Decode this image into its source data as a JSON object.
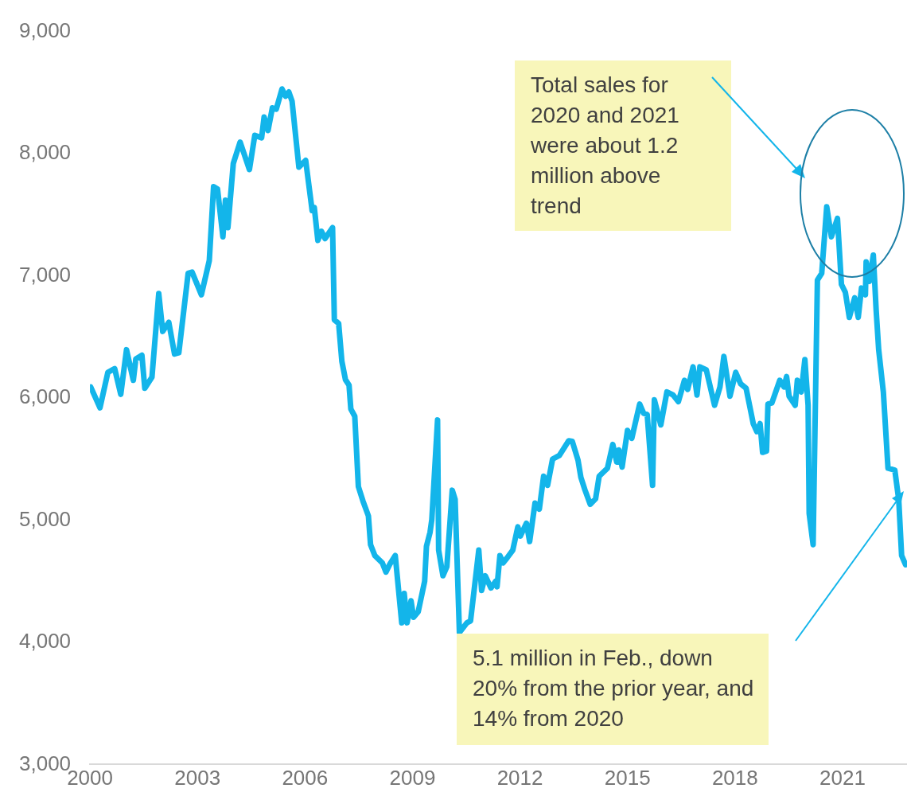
{
  "chart_data": {
    "type": "line",
    "x": [
      2000.02,
      2000.28,
      2000.5,
      2000.69,
      2000.86,
      2001.02,
      2001.21,
      2001.28,
      2001.45,
      2001.53,
      2001.73,
      2001.92,
      2002.03,
      2002.2,
      2002.36,
      2002.48,
      2002.74,
      2002.85,
      2003.11,
      2003.33,
      2003.45,
      2003.56,
      2003.71,
      2003.78,
      2003.85,
      2004.0,
      2004.19,
      2004.45,
      2004.6,
      2004.79,
      2004.86,
      2004.97,
      2005.09,
      2005.2,
      2005.36,
      2005.46,
      2005.55,
      2005.64,
      2005.83,
      2006.02,
      2006.2,
      2006.26,
      2006.36,
      2006.46,
      2006.56,
      2006.77,
      2006.82,
      2006.94,
      2007.03,
      2007.13,
      2007.23,
      2007.28,
      2007.39,
      2007.49,
      2007.62,
      2007.77,
      2007.83,
      2007.95,
      2008.16,
      2008.26,
      2008.36,
      2008.52,
      2008.7,
      2008.77,
      2008.85,
      2008.96,
      2009.03,
      2009.16,
      2009.34,
      2009.39,
      2009.49,
      2009.54,
      2009.7,
      2009.73,
      2009.85,
      2009.96,
      2010.11,
      2010.19,
      2010.31,
      2010.52,
      2010.62,
      2010.72,
      2010.85,
      2010.93,
      2011.03,
      2011.19,
      2011.32,
      2011.36,
      2011.44,
      2011.53,
      2011.65,
      2011.8,
      2011.94,
      2012.01,
      2012.18,
      2012.27,
      2012.42,
      2012.54,
      2012.66,
      2012.77,
      2012.91,
      2013.1,
      2013.36,
      2013.46,
      2013.62,
      2013.7,
      2013.81,
      2013.96,
      2014.11,
      2014.21,
      2014.44,
      2014.59,
      2014.7,
      2014.76,
      2014.85,
      2015.0,
      2015.12,
      2015.34,
      2015.45,
      2015.55,
      2015.7,
      2015.75,
      2015.93,
      2016.1,
      2016.27,
      2016.42,
      2016.59,
      2016.68,
      2016.83,
      2016.94,
      2017.02,
      2017.2,
      2017.43,
      2017.58,
      2017.69,
      2017.86,
      2018.02,
      2018.16,
      2018.31,
      2018.51,
      2018.61,
      2018.7,
      2018.77,
      2018.88,
      2018.92,
      2019.03,
      2019.25,
      2019.37,
      2019.44,
      2019.51,
      2019.68,
      2019.74,
      2019.85,
      2019.95,
      2020.04,
      2020.07,
      2020.18,
      2020.3,
      2020.42,
      2020.56,
      2020.69,
      2020.86,
      2020.97,
      2021.08,
      2021.19,
      2021.34,
      2021.44,
      2021.53,
      2021.64,
      2021.66,
      2021.75,
      2021.86,
      2021.94,
      2022.01,
      2022.14,
      2022.27,
      2022.46,
      2022.57,
      2022.65,
      2022.76
    ],
    "series": [
      {
        "color": "#13b5ea",
        "values": [
          6090,
          5920,
          6210,
          6240,
          6030,
          6395,
          6145,
          6320,
          6350,
          6080,
          6170,
          6855,
          6545,
          6620,
          6360,
          6370,
          7020,
          7030,
          6845,
          7125,
          7730,
          7710,
          7320,
          7620,
          7395,
          7920,
          8095,
          7870,
          8150,
          8130,
          8300,
          8190,
          8375,
          8365,
          8530,
          8470,
          8505,
          8430,
          7890,
          7945,
          7535,
          7560,
          7290,
          7365,
          7305,
          7395,
          6640,
          6610,
          6300,
          6150,
          6105,
          5910,
          5850,
          5275,
          5155,
          5035,
          4800,
          4710,
          4650,
          4575,
          4635,
          4710,
          4160,
          4400,
          4160,
          4340,
          4205,
          4250,
          4500,
          4785,
          4900,
          5005,
          5820,
          4755,
          4545,
          4620,
          5245,
          5170,
          4080,
          4160,
          4175,
          4425,
          4755,
          4425,
          4545,
          4445,
          4500,
          4455,
          4710,
          4650,
          4695,
          4755,
          4945,
          4870,
          4975,
          4825,
          5140,
          5090,
          5360,
          5285,
          5500,
          5530,
          5650,
          5645,
          5490,
          5350,
          5250,
          5130,
          5175,
          5360,
          5425,
          5620,
          5475,
          5575,
          5435,
          5735,
          5670,
          5950,
          5875,
          5865,
          5285,
          5985,
          5780,
          6050,
          6025,
          5970,
          6145,
          6070,
          6255,
          6025,
          6255,
          6230,
          5940,
          6090,
          6340,
          6015,
          6210,
          6115,
          6080,
          5790,
          5725,
          5790,
          5555,
          5565,
          5950,
          5960,
          6145,
          6090,
          6175,
          6015,
          5940,
          6145,
          6050,
          6315,
          5940,
          5055,
          4800,
          6965,
          7020,
          7565,
          7320,
          7470,
          6930,
          6865,
          6660,
          6820,
          6660,
          6900,
          6845,
          7115,
          6955,
          7170,
          6715,
          6395,
          6050,
          5425,
          5410,
          5165,
          4710,
          4635
        ]
      }
    ],
    "xlim": [
      2000,
      2022.8
    ],
    "xticks": [
      2000,
      2003,
      2006,
      2009,
      2012,
      2015,
      2018,
      2021
    ],
    "ylim": [
      3000,
      9000
    ],
    "yticks": [
      {
        "value": 3000,
        "label": "3,000"
      },
      {
        "value": 4000,
        "label": "4,000"
      },
      {
        "value": 5000,
        "label": "5,000"
      },
      {
        "value": 6000,
        "label": "6,000"
      },
      {
        "value": 7000,
        "label": "7,000"
      },
      {
        "value": 8000,
        "label": "8,000"
      },
      {
        "value": 9000,
        "label": "9,000"
      }
    ],
    "annotations": [
      "Total sales for 2020 and 2021 were about 1.2 million above trend",
      "5.1 million in Feb., down 20% from the prior year, and 14% from 2020"
    ],
    "grid": false,
    "legend": false,
    "marker": "none",
    "line_style": "solid"
  }
}
